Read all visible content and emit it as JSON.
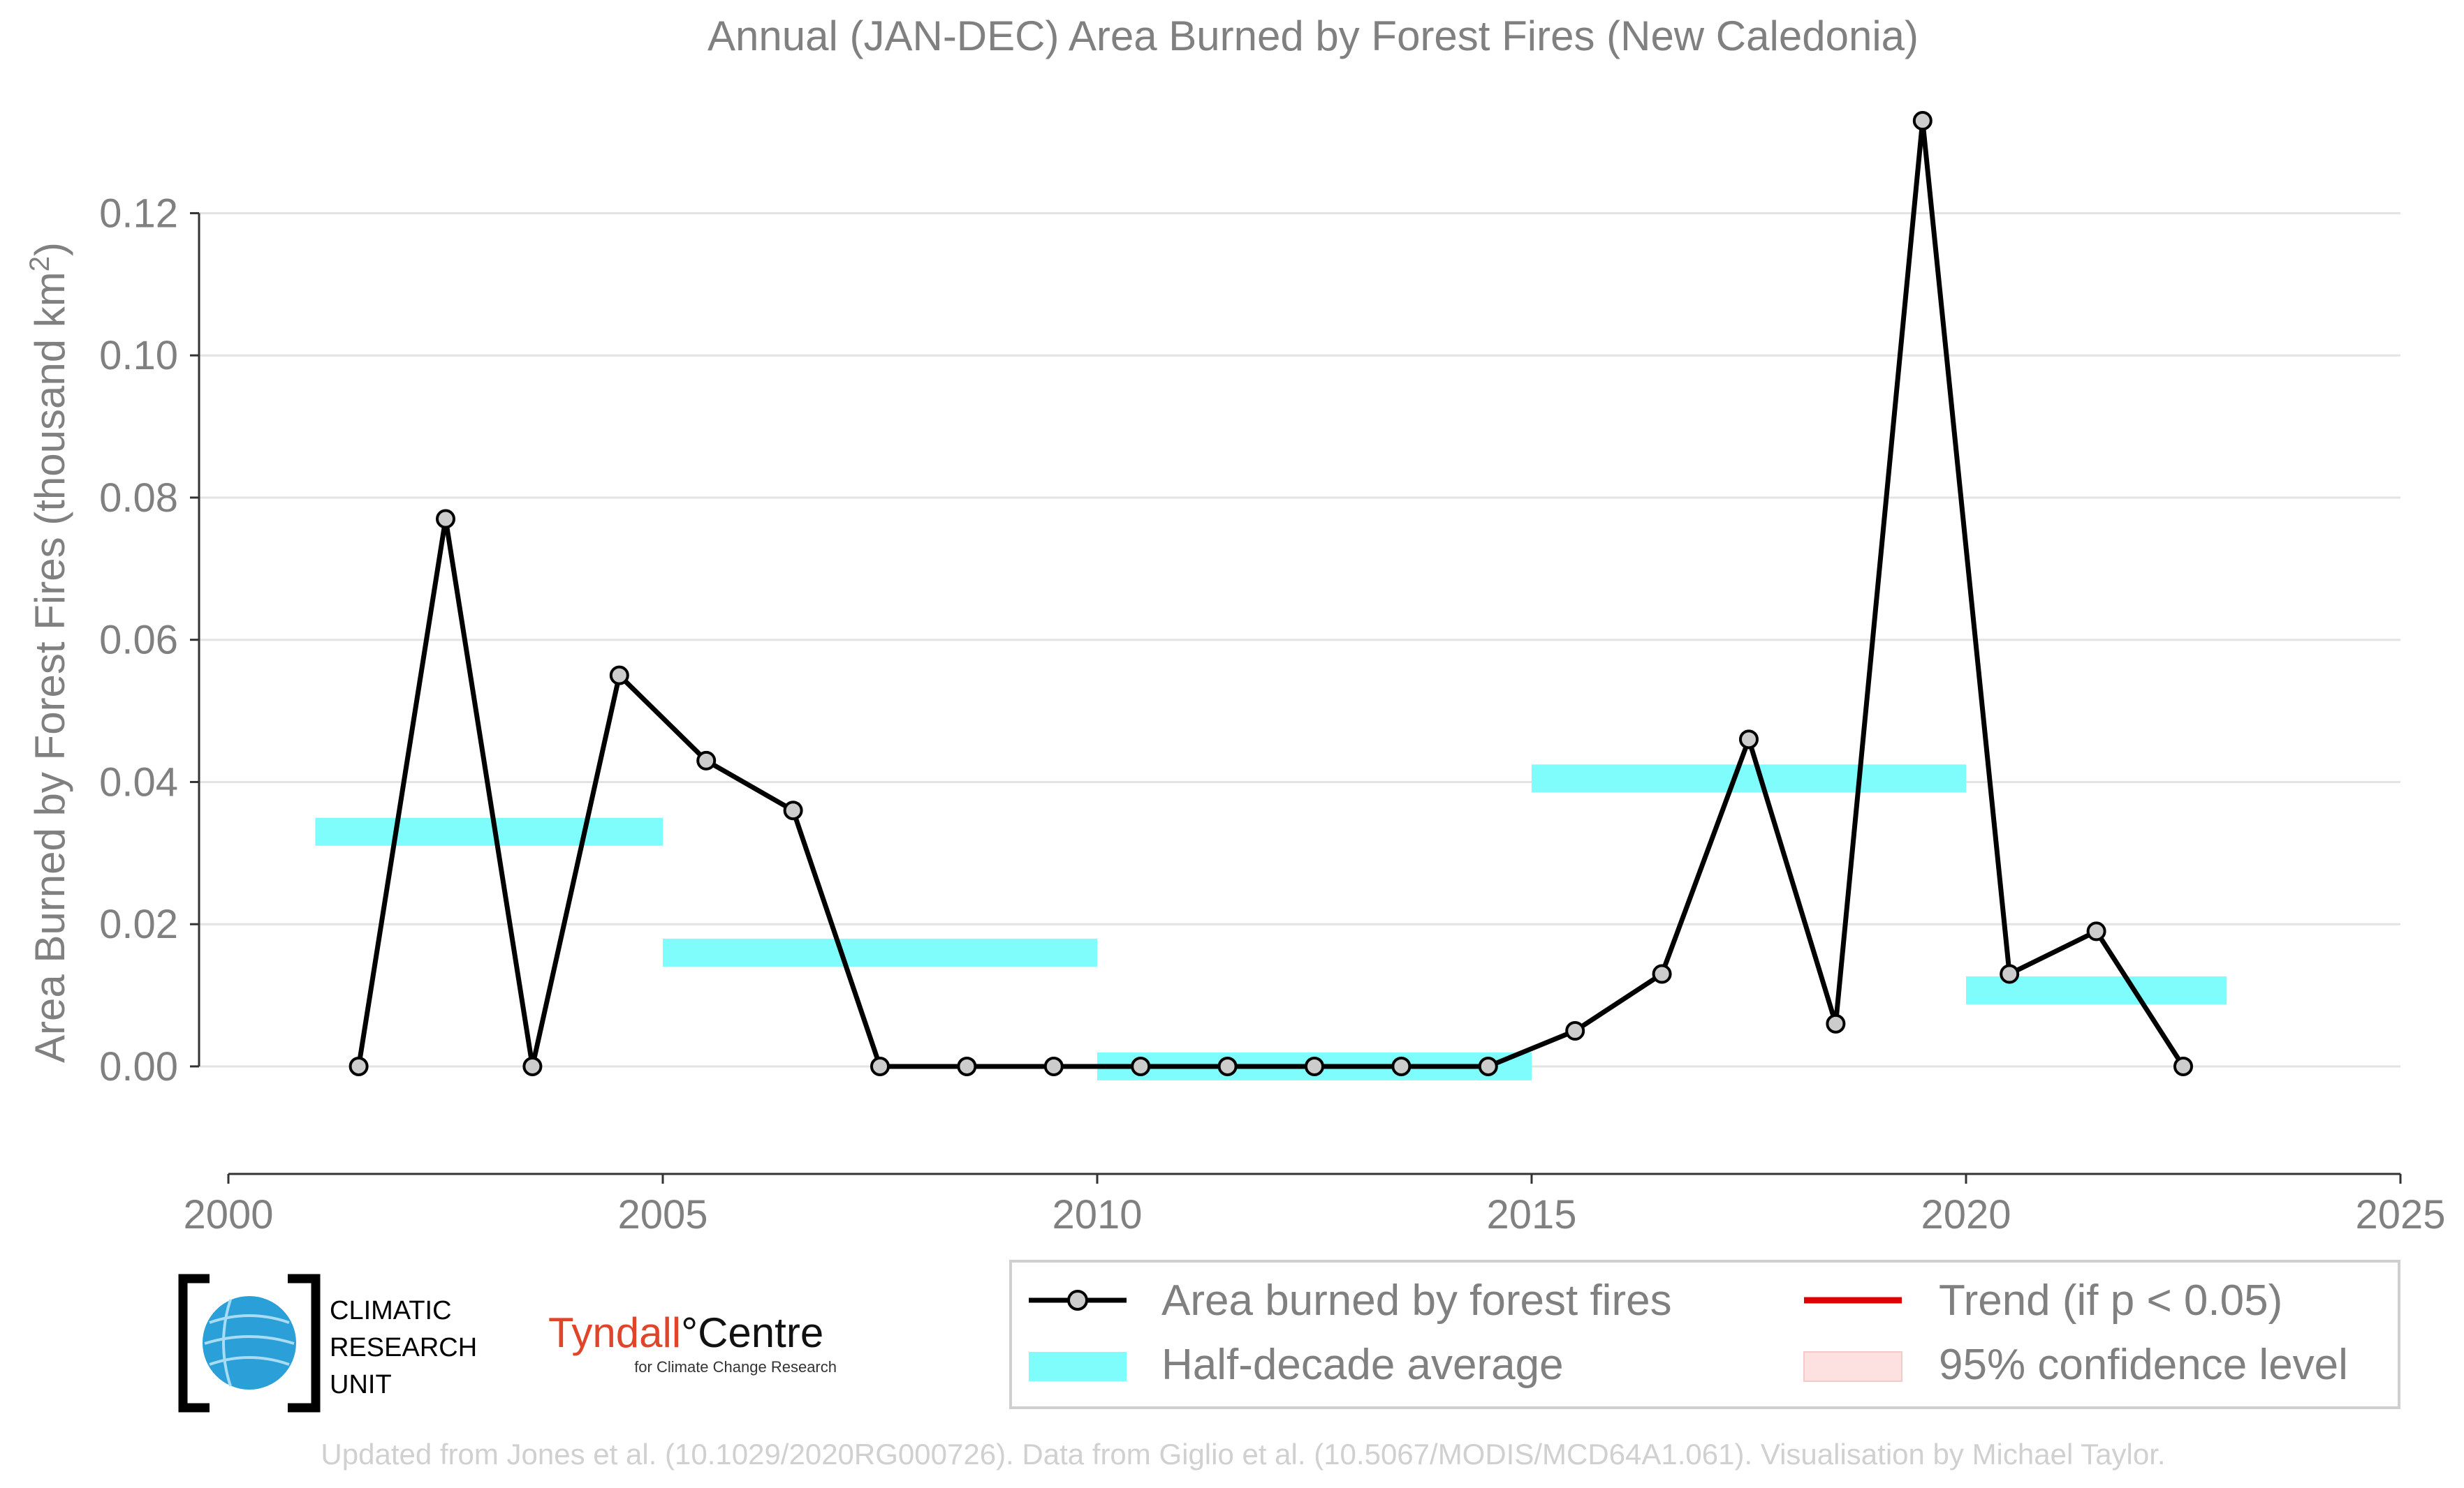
{
  "chart_data": {
    "type": "line",
    "title": "Annual (JAN-DEC) Area Burned by Forest Fires (New Caledonia)",
    "ylabel_main": "Area Burned by Forest Fires (thousand km",
    "ylabel_sup": "2",
    "ylabel_close": ")",
    "xlim": [
      2000,
      2025
    ],
    "ylim": [
      -0.011,
      0.133
    ],
    "x_ticks": [
      2000,
      2005,
      2010,
      2015,
      2020,
      2025
    ],
    "y_ticks": [
      0.0,
      0.02,
      0.04,
      0.06,
      0.08,
      0.1,
      0.12
    ],
    "y_tick_labels": [
      "0.00",
      "0.02",
      "0.04",
      "0.06",
      "0.08",
      "0.10",
      "0.12"
    ],
    "grid": "horizontal",
    "series": [
      {
        "name": "Area burned by forest fires",
        "x": [
          2001.5,
          2002.5,
          2003.5,
          2004.5,
          2005.5,
          2006.5,
          2007.5,
          2008.5,
          2009.5,
          2010.5,
          2011.5,
          2012.5,
          2013.5,
          2014.5,
          2015.5,
          2016.5,
          2017.5,
          2018.5,
          2019.5,
          2020.5,
          2021.5,
          2022.5
        ],
        "values": [
          0.0,
          0.077,
          0.0,
          0.055,
          0.043,
          0.036,
          0.0,
          0.0,
          0.0,
          0.0,
          0.0,
          0.0,
          0.0,
          0.0,
          0.005,
          0.013,
          0.046,
          0.006,
          0.133,
          0.013,
          0.019,
          0.0
        ],
        "color": "#000000"
      }
    ],
    "half_decade_average": {
      "name": "Half-decade average",
      "color": "#7ffcfc",
      "segments": [
        {
          "x0": 2001,
          "x1": 2005,
          "y": 0.033
        },
        {
          "x0": 2005,
          "x1": 2010,
          "y": 0.016
        },
        {
          "x0": 2010,
          "x1": 2015,
          "y": 0.0
        },
        {
          "x0": 2015,
          "x1": 2020,
          "y": 0.0405
        },
        {
          "x0": 2020,
          "x1": 2023,
          "y": 0.0107
        }
      ]
    },
    "legend": {
      "placement": "bottom-right",
      "items": [
        {
          "label": "Area burned by forest fires",
          "symbol": "line-marker",
          "color": "#000000"
        },
        {
          "label": "Trend (if p < 0.05)",
          "symbol": "line",
          "color": "#e00000"
        },
        {
          "label": "Half-decade average",
          "symbol": "patch",
          "color": "#7ffcfc"
        },
        {
          "label": "95% confidence level",
          "symbol": "patch",
          "color": "#fde0e0"
        }
      ]
    }
  },
  "logos": {
    "cru_line1": "CLIMATIC",
    "cru_line2": "RESEARCH",
    "cru_line3": "UNIT",
    "tyndall_red": "Tyndall",
    "tyndall_dark": "°Centre",
    "tyndall_sub": "for Climate Change Research"
  },
  "footer": "Updated from Jones et al. (10.1029/2020RG000726). Data from Giglio et al. (10.5067/MODIS/MCD64A1.061). Visualisation by Michael Taylor."
}
